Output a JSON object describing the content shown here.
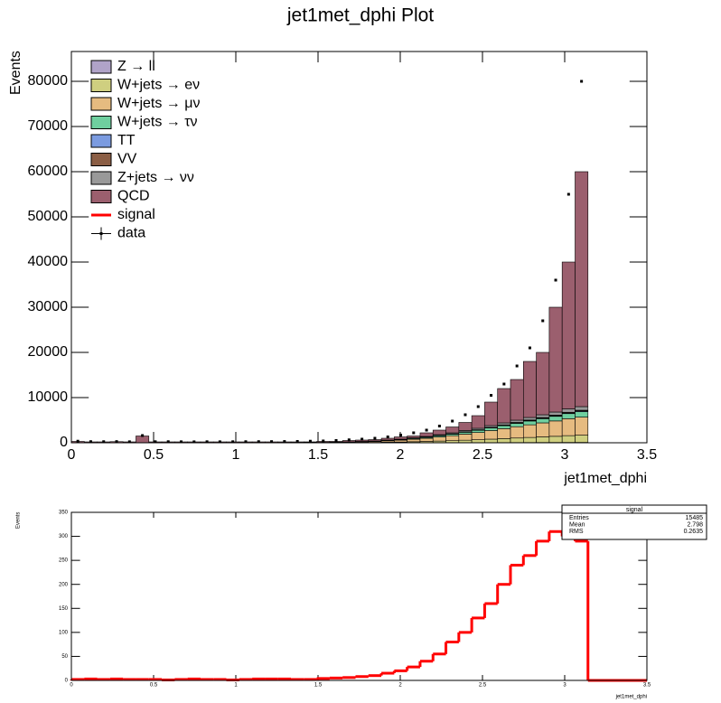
{
  "chart_data": [
    {
      "type": "stacked_histogram",
      "title": "jet1met_dphi Plot",
      "x_label": "jet1met_dphi",
      "y_label": "Events",
      "bins": [
        0,
        0.0785,
        0.1571,
        0.2356,
        0.3142,
        0.3927,
        0.4712,
        0.5498,
        0.6283,
        0.7069,
        0.7854,
        0.8639,
        0.9425,
        1.021,
        1.0996,
        1.1781,
        1.2566,
        1.3352,
        1.4137,
        1.4923,
        1.5708,
        1.6493,
        1.7279,
        1.8064,
        1.885,
        1.9635,
        2.042,
        2.1206,
        2.1991,
        2.2777,
        2.3562,
        2.4347,
        2.5133,
        2.5918,
        2.6704,
        2.7489,
        2.8274,
        2.906,
        2.9845,
        3.0631,
        3.1416
      ],
      "series": [
        {
          "name": "Z → ll",
          "color": "#b0a3c8",
          "values": [
            0,
            0,
            0,
            0,
            0,
            0,
            0,
            0,
            0,
            0,
            0,
            0,
            0,
            0,
            0,
            0,
            0,
            0,
            1,
            1,
            2,
            2,
            3,
            4,
            6,
            8,
            11,
            14,
            18,
            22,
            27,
            32,
            38,
            44,
            50,
            56,
            62,
            68,
            75,
            80
          ]
        },
        {
          "name": "W+jets → eν",
          "color": "#cfcf80",
          "values": [
            4,
            4,
            4,
            4,
            4,
            4,
            4,
            4,
            4,
            4,
            4,
            6,
            6,
            6,
            8,
            8,
            10,
            12,
            16,
            20,
            30,
            40,
            60,
            80,
            120,
            160,
            220,
            280,
            360,
            440,
            540,
            640,
            760,
            880,
            1000,
            1120,
            1240,
            1360,
            1500,
            1600
          ]
        },
        {
          "name": "W+jets → μν",
          "color": "#e6bb80",
          "values": [
            10,
            10,
            10,
            10,
            10,
            10,
            10,
            10,
            10,
            10,
            10,
            15,
            15,
            15,
            20,
            20,
            25,
            30,
            40,
            50,
            75,
            100,
            150,
            200,
            300,
            400,
            550,
            700,
            900,
            1100,
            1350,
            1600,
            1900,
            2200,
            2500,
            2800,
            3100,
            3400,
            3750,
            4000
          ]
        },
        {
          "name": "W+jets → τν",
          "color": "#6fcf9f",
          "values": [
            3,
            3,
            3,
            3,
            3,
            3,
            3,
            3,
            3,
            3,
            3,
            5,
            5,
            5,
            6,
            6,
            8,
            9,
            12,
            15,
            23,
            30,
            45,
            60,
            90,
            120,
            165,
            210,
            270,
            330,
            405,
            480,
            570,
            660,
            750,
            840,
            930,
            1020,
            1125,
            1200
          ]
        },
        {
          "name": "TT",
          "color": "#7b9be0",
          "values": [
            0,
            0,
            0,
            0,
            0,
            0,
            0,
            0,
            0,
            0,
            0,
            0,
            0,
            0,
            0,
            0,
            0,
            0,
            2,
            2,
            3,
            4,
            6,
            8,
            12,
            16,
            22,
            28,
            36,
            44,
            54,
            64,
            76,
            88,
            100,
            112,
            124,
            136,
            150,
            160
          ]
        },
        {
          "name": "VV",
          "color": "#8b5e45",
          "values": [
            0,
            0,
            0,
            0,
            0,
            0,
            0,
            0,
            0,
            0,
            0,
            0,
            0,
            0,
            0,
            0,
            0,
            0,
            2,
            2,
            3,
            4,
            6,
            8,
            12,
            16,
            22,
            28,
            36,
            44,
            54,
            64,
            76,
            88,
            100,
            112,
            124,
            136,
            150,
            160
          ]
        },
        {
          "name": "Z+jets → νν",
          "color": "#999999",
          "values": [
            2,
            2,
            2,
            2,
            2,
            2,
            2,
            2,
            2,
            2,
            2,
            3,
            3,
            3,
            4,
            4,
            5,
            6,
            8,
            10,
            15,
            20,
            30,
            40,
            60,
            80,
            110,
            140,
            180,
            220,
            270,
            320,
            380,
            440,
            500,
            560,
            620,
            680,
            750,
            800
          ]
        },
        {
          "name": "QCD",
          "color": "#9b5f6e",
          "values": [
            280,
            180,
            180,
            230,
            180,
            1480,
            180,
            180,
            180,
            180,
            180,
            170,
            170,
            170,
            160,
            160,
            150,
            140,
            120,
            200,
            150,
            300,
            300,
            300,
            400,
            500,
            400,
            800,
            1000,
            1300,
            1800,
            2800,
            5200,
            7600,
            9000,
            12400,
            13800,
            23200,
            32500,
            52000
          ]
        }
      ],
      "signal": {
        "name": "signal",
        "color": "#ff0000"
      },
      "data": {
        "name": "data",
        "color": "#000000",
        "values": [
          350,
          250,
          240,
          260,
          220,
          1600,
          230,
          240,
          220,
          210,
          230,
          220,
          230,
          240,
          250,
          260,
          280,
          300,
          350,
          400,
          500,
          650,
          800,
          1000,
          1300,
          1700,
          2200,
          2800,
          3700,
          4800,
          6200,
          8000,
          10500,
          13000,
          17000,
          21000,
          27000,
          36000,
          55000,
          80000
        ]
      },
      "xlim": [
        0,
        3.5
      ],
      "xticks": [
        0,
        0.5,
        1,
        1.5,
        2,
        2.5,
        3,
        3.5
      ],
      "ylim": [
        0,
        86600
      ],
      "yticks": [
        0,
        10000,
        20000,
        30000,
        40000,
        50000,
        60000,
        70000,
        80000
      ]
    },
    {
      "type": "histogram",
      "x_label": "jet1met_dphi",
      "y_label": "Events",
      "bins": [
        0,
        0.0785,
        0.1571,
        0.2356,
        0.3142,
        0.3927,
        0.4712,
        0.5498,
        0.6283,
        0.7069,
        0.7854,
        0.8639,
        0.9425,
        1.021,
        1.0996,
        1.1781,
        1.2566,
        1.3352,
        1.4137,
        1.4923,
        1.5708,
        1.6493,
        1.7279,
        1.8064,
        1.885,
        1.9635,
        2.042,
        2.1206,
        2.1991,
        2.2777,
        2.3562,
        2.4347,
        2.5133,
        2.5918,
        2.6704,
        2.7489,
        2.8274,
        2.906,
        2.9845,
        3.0631,
        3.1416
      ],
      "values": [
        2,
        3,
        2,
        3,
        2,
        2,
        2,
        1,
        2,
        3,
        2,
        2,
        1,
        2,
        3,
        3,
        3,
        2,
        2,
        4,
        5,
        6,
        8,
        10,
        15,
        20,
        28,
        40,
        55,
        80,
        100,
        130,
        160,
        200,
        240,
        260,
        290,
        310,
        300,
        290
      ],
      "color": "#ff0000",
      "stats": {
        "title": "signal",
        "rows": [
          [
            "Entries",
            15485
          ],
          [
            "Mean",
            2.798
          ],
          [
            "RMS",
            0.2635
          ]
        ]
      },
      "xlim": [
        0,
        3.5
      ],
      "xticks": [
        0,
        0.5,
        1,
        1.5,
        2,
        2.5,
        3,
        3.5
      ],
      "ylim": [
        0,
        350
      ],
      "yticks": [
        0,
        50,
        100,
        150,
        200,
        250,
        300,
        350
      ]
    }
  ]
}
